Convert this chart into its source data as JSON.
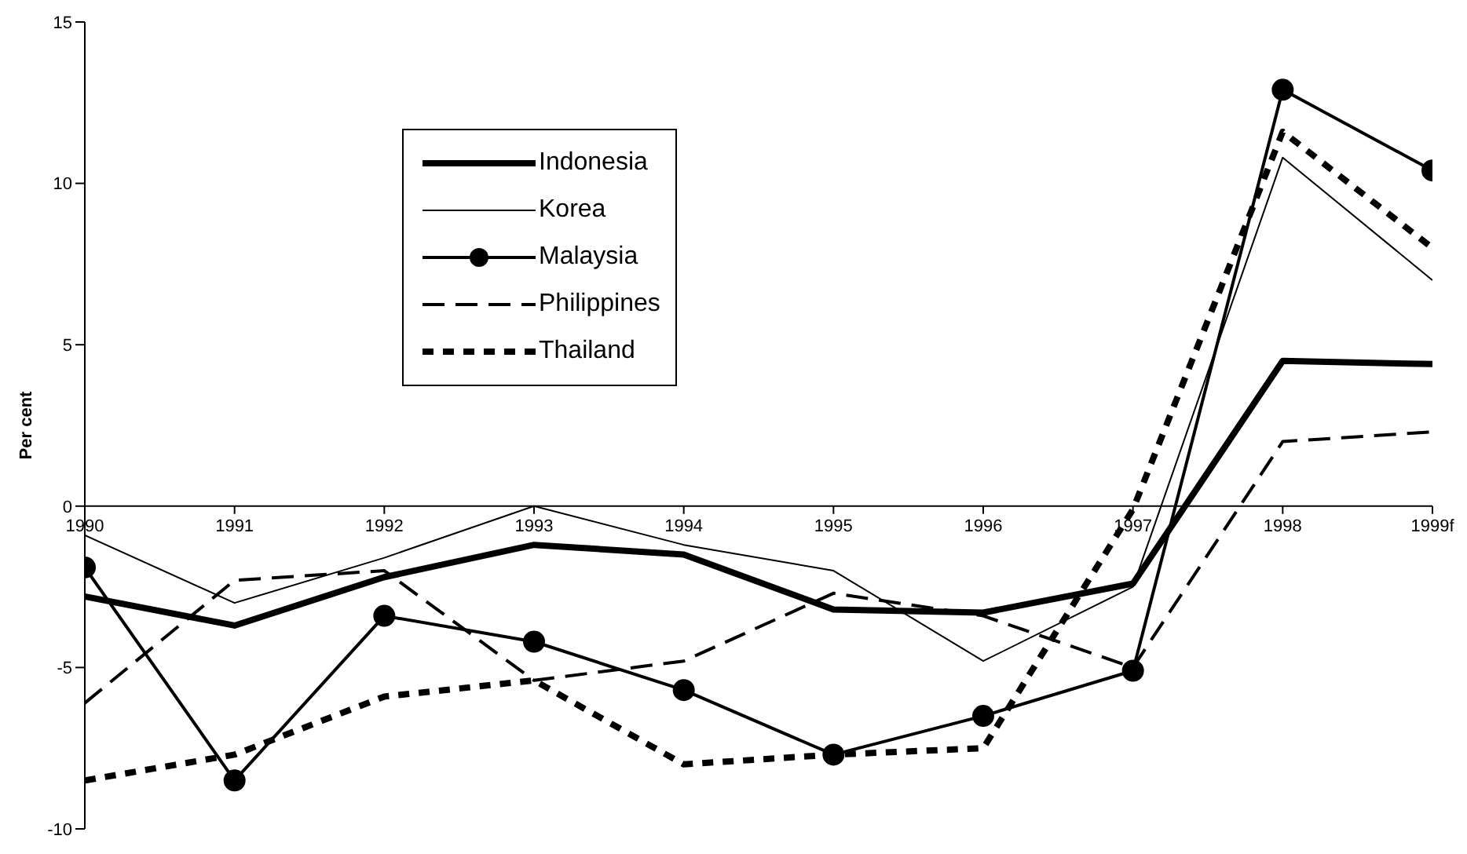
{
  "chart_data": {
    "type": "line",
    "ylabel": "Per cent",
    "categories": [
      "1990",
      "1991",
      "1992",
      "1993",
      "1994",
      "1995",
      "1996",
      "1997",
      "1998",
      "1999f"
    ],
    "series": [
      {
        "name": "Indonesia",
        "color": "#000000",
        "line_style": "solid",
        "marker": "none",
        "values": [
          -2.8,
          -3.7,
          -2.2,
          -1.2,
          -1.5,
          -3.2,
          -3.3,
          -2.4,
          4.5,
          4.4
        ]
      },
      {
        "name": "Korea",
        "color": "#000000",
        "line_style": "solid",
        "marker": "none",
        "values": [
          -0.9,
          -3.0,
          -1.6,
          0.0,
          -1.2,
          -2.0,
          -4.8,
          -2.5,
          10.8,
          7.0
        ]
      },
      {
        "name": "Malaysia",
        "color": "#000000",
        "line_style": "solid",
        "marker": "circle",
        "values": [
          -1.9,
          -8.5,
          -3.4,
          -4.2,
          -5.7,
          -7.7,
          -6.5,
          -5.1,
          12.9,
          10.4
        ]
      },
      {
        "name": "Philippines",
        "color": "#000000",
        "line_style": "dashed",
        "marker": "none",
        "values": [
          -6.1,
          -2.3,
          -2.0,
          -5.4,
          -4.8,
          -2.7,
          -3.4,
          -5.0,
          2.0,
          2.3
        ]
      },
      {
        "name": "Thailand",
        "color": "#000000",
        "line_style": "dotted",
        "marker": "none",
        "values": [
          -8.5,
          -7.7,
          -5.9,
          -5.4,
          -8.0,
          -7.7,
          -7.5,
          -0.1,
          11.6,
          8.0
        ]
      }
    ],
    "ylim": [
      -10,
      15
    ],
    "yticks": [
      -10,
      -5,
      0,
      5,
      10,
      15
    ],
    "grid": false,
    "legend": "top left"
  }
}
